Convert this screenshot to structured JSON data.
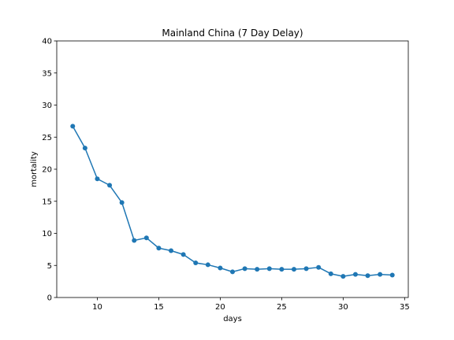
{
  "chart_data": {
    "type": "line",
    "title": "Mainland China (7 Day Delay)",
    "xlabel": "days",
    "ylabel": "mortality",
    "xlim": [
      6.7,
      35.3
    ],
    "ylim": [
      0,
      40
    ],
    "xticks": [
      10,
      15,
      20,
      25,
      30,
      35
    ],
    "yticks": [
      0,
      5,
      10,
      15,
      20,
      25,
      30,
      35,
      40
    ],
    "grid": false,
    "legend": "none",
    "series": [
      {
        "color": "#1f77b4",
        "marker": "circle",
        "x": [
          8,
          9,
          10,
          11,
          12,
          13,
          14,
          15,
          16,
          17,
          18,
          19,
          20,
          21,
          22,
          23,
          24,
          25,
          26,
          27,
          28,
          29,
          30,
          31,
          32,
          33,
          34
        ],
        "y": [
          26.7,
          23.3,
          18.5,
          17.5,
          14.8,
          8.9,
          9.3,
          7.7,
          7.3,
          6.7,
          5.4,
          5.1,
          4.6,
          4.0,
          4.5,
          4.4,
          4.5,
          4.4,
          4.4,
          4.5,
          4.7,
          3.7,
          3.3,
          3.6,
          3.4,
          3.6,
          3.5
        ]
      }
    ]
  }
}
